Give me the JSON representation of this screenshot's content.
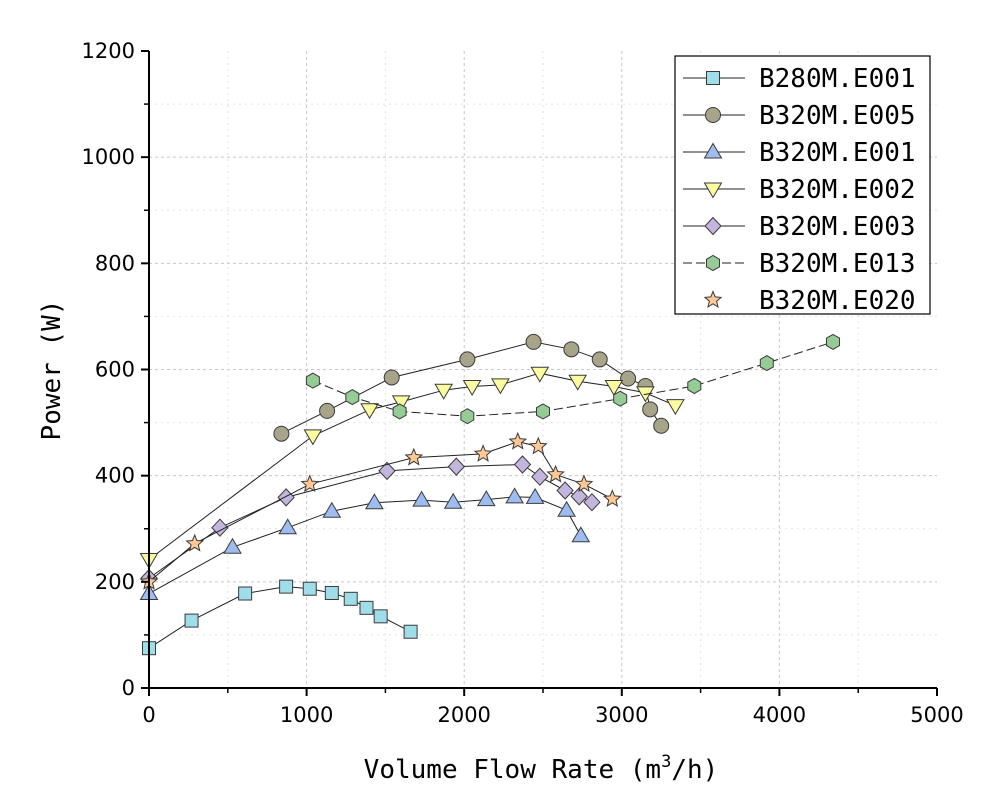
{
  "chart_data": {
    "type": "line",
    "title": "",
    "xlabel": "Volume Flow Rate (m",
    "xlabel_sup": "3",
    "xlabel_suffix": "/h)",
    "ylabel": "Power (W)",
    "xlim": [
      0,
      5000
    ],
    "ylim": [
      0,
      1200
    ],
    "xticks": [
      0,
      1000,
      2000,
      3000,
      4000,
      5000
    ],
    "yticks": [
      0,
      200,
      400,
      600,
      800,
      1000,
      1200
    ],
    "grid": true,
    "legend_position": "top-right",
    "series": [
      {
        "name": "B280M.E001",
        "marker": "square",
        "color": "#9fdde8",
        "line": "solid",
        "x": [
          0,
          270,
          610,
          870,
          1020,
          1160,
          1280,
          1380,
          1470,
          1660
        ],
        "y": [
          75,
          127,
          178,
          191,
          187,
          179,
          168,
          151,
          135,
          106
        ]
      },
      {
        "name": "B320M.E005",
        "marker": "circle",
        "color": "#a8a48a",
        "line": "solid",
        "x": [
          840,
          1130,
          1540,
          2020,
          2440,
          2680,
          2860,
          3040,
          3150,
          3180,
          3250
        ],
        "y": [
          479,
          522,
          585,
          619,
          652,
          638,
          619,
          583,
          569,
          525,
          494
        ]
      },
      {
        "name": "B320M.E001",
        "marker": "triangle-up",
        "color": "#9ebcf0",
        "line": "solid",
        "x": [
          0,
          530,
          880,
          1160,
          1430,
          1730,
          1930,
          2140,
          2320,
          2450,
          2650,
          2740
        ],
        "y": [
          178,
          265,
          302,
          333,
          349,
          354,
          350,
          355,
          360,
          359,
          335,
          287
        ]
      },
      {
        "name": "B320M.E002",
        "marker": "triangle-down",
        "color": "#fbfba0",
        "line": "solid",
        "x": [
          0,
          1040,
          1400,
          1600,
          1870,
          2050,
          2230,
          2480,
          2720,
          2950,
          3150,
          3340
        ],
        "y": [
          242,
          475,
          524,
          539,
          561,
          568,
          571,
          593,
          578,
          568,
          556,
          532
        ]
      },
      {
        "name": "B320M.E003",
        "marker": "diamond",
        "color": "#c4b5de",
        "line": "solid",
        "x": [
          0,
          450,
          870,
          1510,
          1950,
          2370,
          2480,
          2640,
          2730,
          2810
        ],
        "y": [
          207,
          302,
          359,
          409,
          417,
          421,
          398,
          372,
          361,
          350
        ]
      },
      {
        "name": "B320M.E013",
        "marker": "hexagon",
        "color": "#95cc95",
        "line": "dashed",
        "x": [
          1040,
          1290,
          1590,
          2020,
          2500,
          2990,
          3460,
          3920,
          4340
        ],
        "y": [
          579,
          548,
          521,
          512,
          521,
          545,
          569,
          612,
          652
        ]
      },
      {
        "name": "B320M.E020",
        "marker": "star",
        "color": "#ffc896",
        "line": "solid",
        "x": [
          0,
          290,
          1020,
          1680,
          2120,
          2340,
          2470,
          2580,
          2760,
          2940
        ],
        "y": [
          200,
          272,
          384,
          434,
          441,
          464,
          455,
          402,
          384,
          356
        ]
      }
    ]
  }
}
